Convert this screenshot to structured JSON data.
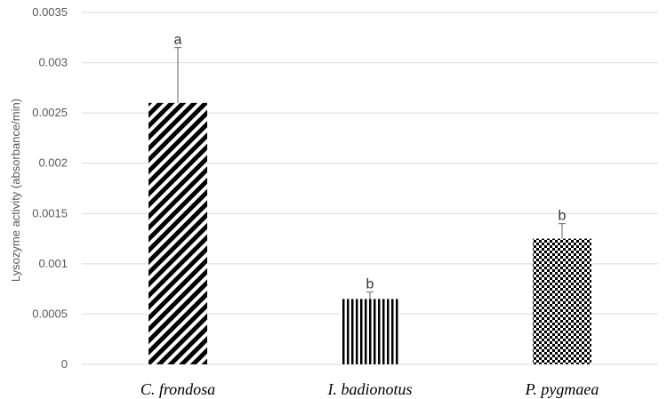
{
  "chart_data": {
    "type": "bar",
    "title": "",
    "xlabel": "",
    "ylabel": "Lysozyme activity (absorbance/min)",
    "ylim": [
      0,
      0.0035
    ],
    "yticks": [
      "0",
      "0.0005",
      "0.001",
      "0.0015",
      "0.002",
      "0.0025",
      "0.003",
      "0.0035"
    ],
    "categories": [
      "C. frondosa",
      "I. badionotus",
      "P. pygmaea"
    ],
    "values": [
      0.0026,
      0.00065,
      0.00125
    ],
    "errors": [
      0.00055,
      7e-05,
      0.00015
    ],
    "significance_labels": [
      "a",
      "b",
      "b"
    ],
    "grid": true,
    "legend": "none",
    "patterns": [
      "diagonal-stripes",
      "vertical-stripes",
      "checkerboard"
    ],
    "colors": {
      "bar": "#000000",
      "grid": "#d9d9d9",
      "error_bar": "#7f7f7f",
      "axis_text": "#595959"
    }
  }
}
